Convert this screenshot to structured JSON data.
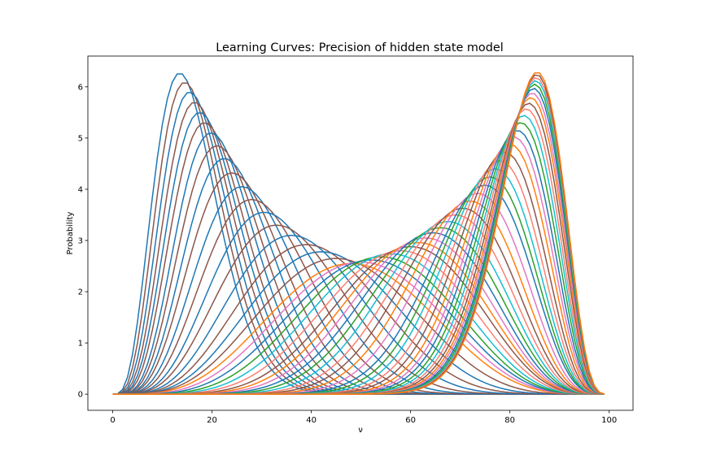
{
  "chart_data": {
    "type": "line",
    "title": "Learning Curves: Precision of hidden state model",
    "xlabel": "ν",
    "ylabel": "Probability",
    "xlim": [
      -5,
      104.8
    ],
    "ylim": [
      -0.315,
      6.6
    ],
    "xticks": [
      0,
      20,
      40,
      60,
      80,
      100
    ],
    "yticks": [
      0,
      1,
      2,
      3,
      4,
      5,
      6
    ],
    "grid": false,
    "legend": "none",
    "x_range": [
      0,
      99
    ],
    "colors": [
      "#1f77b4",
      "#8c564b",
      "#ff7f0e",
      "#2ca02c",
      "#e377c2",
      "#17becf",
      "#fa8072"
    ],
    "series_group_1": {
      "description_kind": "beta-like density curves whose peak moves right and lowers",
      "peak_x": [
        13.5,
        14.5,
        15.5,
        16.5,
        17.5,
        18.5,
        19.8,
        21.0,
        22.5,
        24.0,
        26.0,
        28.0,
        30.5,
        33.0,
        36.0,
        39.0,
        42.0,
        45.0
      ],
      "peak_y": [
        6.27,
        6.09,
        5.9,
        5.7,
        5.5,
        5.3,
        5.1,
        4.85,
        4.6,
        4.32,
        4.05,
        3.8,
        3.55,
        3.3,
        3.1,
        2.92,
        2.78,
        2.65
      ]
    },
    "series_group_2": {
      "peak_x": [
        48.0,
        50.0,
        52.0,
        54.0,
        56.0,
        58.0,
        60.0,
        61.5,
        63.0,
        64.5,
        66.0,
        67.5,
        69.0,
        70.5,
        72.0,
        73.5,
        75.0,
        76.0,
        77.0,
        78.0,
        79.0,
        80.0,
        80.8,
        81.5,
        82.2,
        82.8,
        83.3,
        83.8,
        84.2,
        84.5,
        84.8,
        85.0,
        85.2,
        85.3,
        85.4,
        85.5
      ],
      "peak_y": [
        2.55,
        2.58,
        2.62,
        2.68,
        2.74,
        2.8,
        2.88,
        2.96,
        3.05,
        3.15,
        3.25,
        3.37,
        3.5,
        3.63,
        3.77,
        3.92,
        4.08,
        4.24,
        4.4,
        4.56,
        4.72,
        4.88,
        5.02,
        5.15,
        5.3,
        5.44,
        5.57,
        5.68,
        5.79,
        5.88,
        5.97,
        6.05,
        6.12,
        6.18,
        6.24,
        6.29
      ]
    }
  }
}
